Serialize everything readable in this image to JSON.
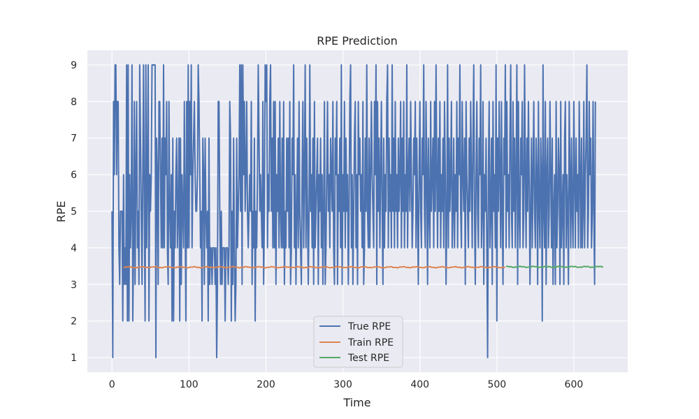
{
  "chart_data": {
    "type": "line",
    "title": "RPE Prediction",
    "xlabel": "Time",
    "ylabel": "RPE",
    "xlim": [
      -32,
      670
    ],
    "ylim": [
      0.6,
      9.4
    ],
    "xticks": [
      "0",
      "100",
      "200",
      "300",
      "400",
      "500",
      "600"
    ],
    "yticks": [
      "1",
      "2",
      "3",
      "4",
      "5",
      "6",
      "7",
      "8",
      "9"
    ],
    "grid": true,
    "legend_position": "lower-center",
    "series": [
      {
        "name": "True RPE",
        "color": "#4c72b0",
        "x_start": 0,
        "y": [
          5,
          1,
          8,
          6,
          9,
          9,
          6,
          8,
          8,
          4,
          3,
          5,
          5,
          5,
          2,
          6,
          3,
          4,
          3,
          9,
          2,
          9,
          2,
          6,
          4,
          5,
          9,
          2,
          4,
          8,
          3,
          6,
          8,
          4,
          5,
          3,
          9,
          7,
          5,
          3,
          6,
          9,
          5,
          2,
          9,
          4,
          6,
          9,
          2,
          6,
          5,
          6,
          9,
          9,
          9,
          9,
          9,
          1,
          7,
          6,
          3,
          8,
          8,
          6,
          4,
          7,
          4,
          9,
          4,
          7,
          6,
          8,
          4,
          3,
          8,
          5,
          4,
          6,
          2,
          7,
          2,
          5,
          4,
          6,
          7,
          4,
          5,
          7,
          2,
          7,
          3,
          6,
          5,
          4,
          8,
          5,
          2,
          8,
          4,
          9,
          4,
          8,
          6,
          9,
          4,
          6,
          7,
          8,
          6,
          5,
          5,
          6,
          9,
          8,
          6,
          4,
          5,
          2,
          7,
          6,
          3,
          7,
          5,
          4,
          5,
          2,
          7,
          3,
          4,
          4,
          3,
          4,
          4,
          4,
          3,
          4,
          1,
          3,
          8,
          8,
          5,
          3,
          5,
          3,
          4,
          4,
          4,
          2,
          4,
          4,
          4,
          3,
          4,
          8,
          7,
          2,
          5,
          3,
          7,
          4,
          2,
          3,
          7,
          4,
          5,
          6,
          9,
          5,
          9,
          3,
          9,
          6,
          8,
          5,
          6,
          8,
          5,
          4,
          5,
          6,
          5,
          8,
          3,
          5,
          4,
          7,
          2,
          5,
          4,
          6,
          9,
          7,
          5,
          6,
          5,
          4,
          8,
          3,
          5,
          9,
          8,
          9,
          4,
          6,
          5,
          8,
          9,
          5,
          7,
          4,
          8,
          4,
          8,
          3,
          6,
          5,
          7,
          4,
          8,
          5,
          4,
          7,
          4,
          8,
          3,
          5,
          4,
          7,
          5,
          7,
          4,
          8,
          3,
          4,
          7,
          6,
          9,
          4,
          6,
          3,
          5,
          7,
          4,
          8,
          5,
          4,
          3,
          6,
          8,
          4,
          6,
          9,
          4,
          7,
          5,
          3,
          5,
          9,
          5,
          6,
          4,
          7,
          3,
          8,
          4,
          5,
          6,
          7,
          3,
          6,
          5,
          7,
          4,
          6,
          3,
          5,
          8,
          3,
          4,
          6,
          8,
          5,
          6,
          4,
          7,
          6,
          5,
          8,
          4,
          3,
          7,
          6,
          8,
          3,
          6,
          5,
          7,
          4,
          9,
          3,
          6,
          5,
          8,
          4,
          7,
          5,
          6,
          3,
          5,
          8,
          9,
          4,
          6,
          3,
          5,
          7,
          8,
          4,
          6,
          3,
          8,
          6,
          7,
          5,
          6,
          4,
          8,
          3,
          4,
          7,
          5,
          9,
          5,
          4,
          7,
          4,
          6,
          8,
          6,
          5,
          4,
          8,
          6,
          9,
          3,
          8,
          5,
          7,
          4,
          6,
          8,
          5,
          3,
          7,
          4,
          6,
          5,
          8,
          9,
          4,
          7,
          5,
          6,
          4,
          9,
          5,
          7,
          4,
          8,
          5,
          6,
          4,
          7,
          5,
          6,
          8,
          4,
          7,
          5,
          8,
          4,
          6,
          5,
          9,
          4,
          6,
          7,
          5,
          8,
          6,
          4,
          5,
          7,
          6,
          8,
          4,
          7,
          5,
          3,
          6,
          8,
          5,
          4,
          7,
          6,
          9,
          5,
          4,
          8,
          6,
          3,
          7,
          5,
          4,
          8,
          5,
          6,
          7,
          4,
          8,
          5,
          9,
          6,
          4,
          7,
          5,
          8,
          4,
          6,
          5,
          7,
          4,
          8,
          6,
          3,
          5,
          9,
          4,
          7,
          5,
          6,
          8,
          4,
          5,
          7,
          4,
          6,
          5,
          8,
          4,
          7,
          6,
          9,
          5,
          4,
          8,
          6,
          5,
          7,
          3,
          8,
          6,
          5,
          4,
          7,
          5,
          8,
          6,
          4,
          7,
          9,
          5,
          3,
          6,
          8,
          5,
          4,
          7,
          6,
          9,
          4,
          5,
          8,
          3,
          6,
          5,
          7,
          4,
          1,
          6,
          8,
          4,
          5,
          7,
          3,
          8,
          5,
          6,
          4,
          9,
          2,
          7,
          5,
          8,
          6,
          4,
          8,
          5,
          3,
          7,
          6,
          9,
          4,
          8,
          5,
          6,
          4,
          7,
          9,
          5,
          4,
          8,
          5,
          7,
          4,
          6,
          9,
          3,
          8,
          5,
          4,
          7,
          6,
          8,
          4,
          5,
          9,
          6,
          4,
          7,
          5,
          8,
          6,
          3,
          5,
          7,
          4,
          6,
          8,
          5,
          4,
          7,
          6,
          3,
          8,
          5,
          4,
          7,
          6,
          2,
          9,
          5,
          4,
          8,
          3,
          6,
          7,
          4,
          5,
          8,
          6,
          4,
          7,
          3,
          5,
          6,
          3,
          8,
          4,
          5,
          7,
          6,
          3,
          8,
          4,
          5,
          6,
          3,
          7,
          8,
          4,
          6,
          5,
          3,
          8,
          6,
          4,
          7,
          5,
          4,
          8,
          6,
          4,
          7,
          5,
          6,
          4,
          8,
          6,
          4,
          7,
          4,
          5,
          8,
          4,
          6,
          7,
          9,
          4,
          5,
          8,
          6,
          7,
          4,
          5,
          8,
          5,
          3,
          8
        ]
      },
      {
        "name": "Train RPE",
        "color": "#dd8452",
        "x_start": 15,
        "x_end": 512,
        "y_mean": 3.47
      },
      {
        "name": "Test RPE",
        "color": "#55a868",
        "x_start": 512,
        "x_end": 639,
        "y_mean": 3.48
      }
    ]
  }
}
